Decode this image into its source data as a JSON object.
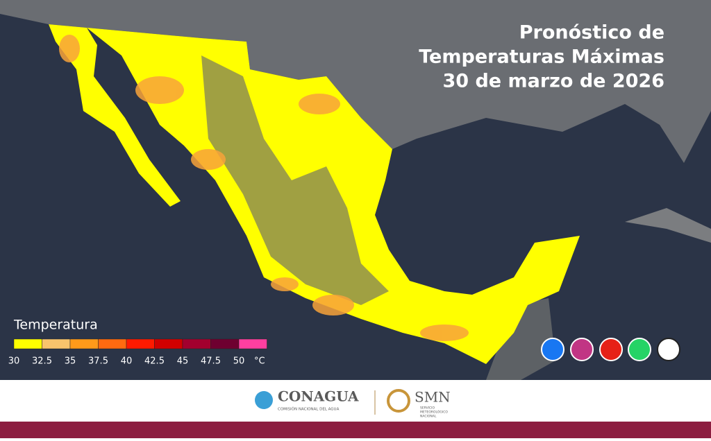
{
  "header": {
    "title_lines": [
      "Pronóstico de",
      "Temperaturas Máximas",
      "30 de marzo de 2026"
    ]
  },
  "legend": {
    "title": "Temperatura",
    "labels": [
      "30",
      "32.5",
      "35",
      "37.5",
      "40",
      "42.5",
      "45",
      "47.5",
      "50",
      "°C"
    ],
    "colors": [
      "#ffff00",
      "#f8c46c",
      "#ff9a1a",
      "#ff6a10",
      "#ff1a00",
      "#d10000",
      "#a3002e",
      "#6e0030",
      "#ff3fa0"
    ]
  },
  "footer": {
    "conagua": "CONAGUA",
    "conagua_subtitle": "COMISIÓN NACIONAL DEL AGUA",
    "smn": "SMN",
    "smn_subtitle": [
      "SERVICIO",
      "METEOROLÓGICO",
      "NACIONAL"
    ]
  }
}
